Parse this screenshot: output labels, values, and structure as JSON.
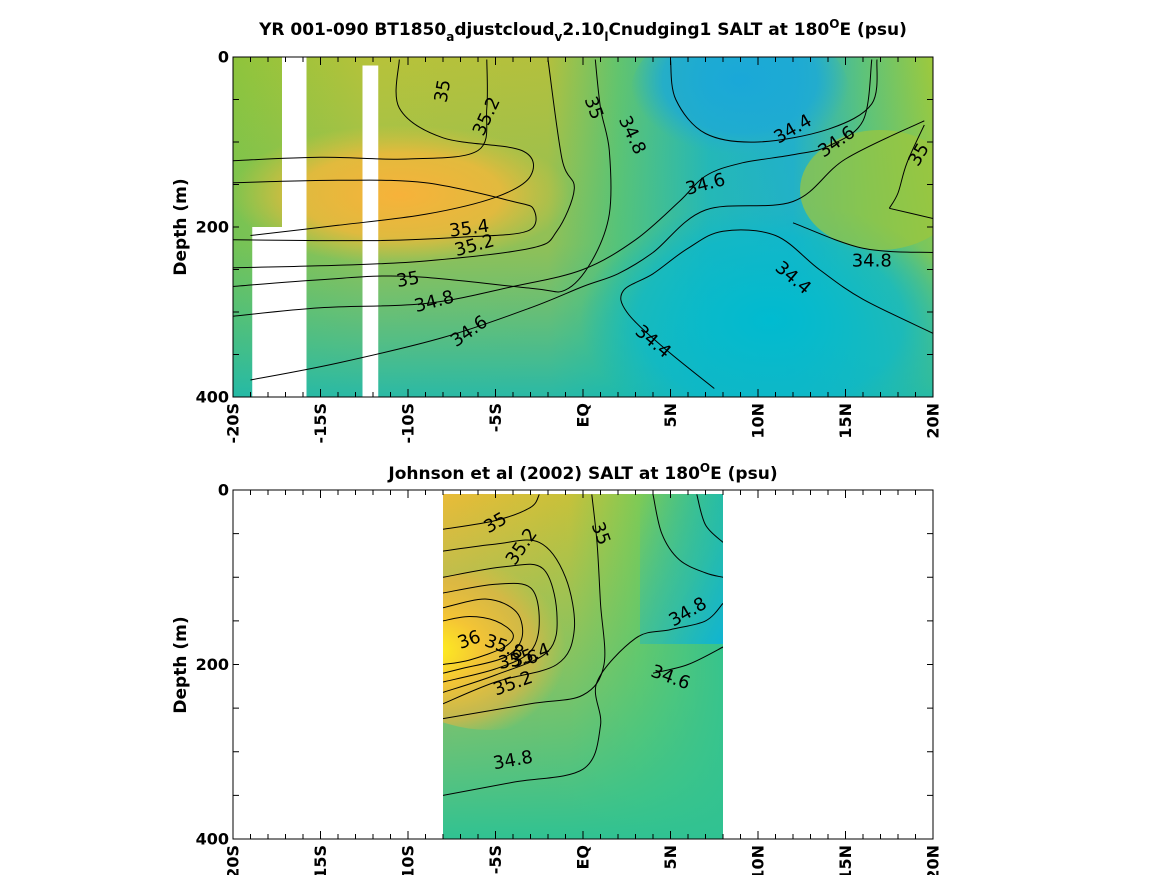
{
  "chart_data": [
    {
      "type": "heatmap",
      "title_parts": {
        "prefix": "YR 001-090 BT1850",
        "sub1": "a",
        "mid1": "djustcloud",
        "sub2": "v",
        "mid2": "2.10",
        "sub3": "l",
        "mid3": "Cnudging1 SALT at 180",
        "sup": "O",
        "suffix": "E (psu)"
      },
      "ylabel": "Depth (m)",
      "xlim": [
        -20,
        20
      ],
      "ylim": [
        0,
        400
      ],
      "y_reversed": true,
      "xticks": [
        {
          "v": -20,
          "label": "-20S"
        },
        {
          "v": -15,
          "label": "-15S"
        },
        {
          "v": -10,
          "label": "-10S"
        },
        {
          "v": -5,
          "label": "-5S"
        },
        {
          "v": 0,
          "label": "EQ"
        },
        {
          "v": 5,
          "label": "5N"
        },
        {
          "v": 10,
          "label": "10N"
        },
        {
          "v": 15,
          "label": "15N"
        },
        {
          "v": 20,
          "label": "20N"
        }
      ],
      "yticks": [
        {
          "v": 0,
          "label": "0"
        },
        {
          "v": 200,
          "label": "200"
        },
        {
          "v": 400,
          "label": "400"
        }
      ],
      "missing_columns": [
        {
          "x": [
            -17.2,
            -15.8
          ],
          "depth": [
            0,
            400
          ]
        },
        {
          "x": [
            -12.6,
            -11.7
          ],
          "depth": [
            10,
            400
          ]
        },
        {
          "x": [
            -18.9,
            -17.2
          ],
          "depth": [
            200,
            400
          ]
        }
      ],
      "contours": [
        {
          "level": "35",
          "points": [
            [
              -19,
              210
            ],
            [
              -14,
              198
            ],
            [
              -9,
              185
            ],
            [
              -5,
              165
            ],
            [
              -3,
              140
            ],
            [
              -3.5,
              110
            ],
            [
              -8,
              95
            ],
            [
              -10.5,
              60
            ],
            [
              -10.5,
              3
            ]
          ]
        },
        {
          "level": "35.2",
          "points": [
            [
              -20,
              122
            ],
            [
              -15,
              118
            ],
            [
              -10,
              120
            ],
            [
              -6,
              110
            ],
            [
              -5.5,
              60
            ],
            [
              -5.5,
              3
            ]
          ]
        },
        {
          "level": "35.4",
          "points": [
            [
              -20,
              148
            ],
            [
              -14,
              145
            ],
            [
              -9,
              148
            ],
            [
              -4,
              170
            ],
            [
              -2.8,
              180
            ],
            [
              -3.2,
              205
            ],
            [
              -7,
              212
            ],
            [
              -12,
              216
            ],
            [
              -20,
              215
            ]
          ]
        },
        {
          "level": "35.2",
          "points": [
            [
              -20,
              248
            ],
            [
              -14,
              245
            ],
            [
              -9,
              240
            ],
            [
              -3,
              225
            ],
            [
              -1.5,
              205
            ],
            [
              -0.5,
              155
            ],
            [
              -1.2,
              120
            ],
            [
              -2,
              3
            ]
          ]
        },
        {
          "level": "35",
          "points": [
            [
              -20,
              270
            ],
            [
              -15,
              262
            ],
            [
              -10,
              258
            ],
            [
              -3,
              272
            ],
            [
              -1,
              274
            ],
            [
              0.5,
              240
            ],
            [
              1.5,
              185
            ],
            [
              1.5,
              110
            ],
            [
              1,
              60
            ],
            [
              0.7,
              3
            ]
          ]
        },
        {
          "level": "34.8",
          "points": [
            [
              -20,
              305
            ],
            [
              -15,
              295
            ],
            [
              -9,
              290
            ],
            [
              -4,
              270
            ],
            [
              0,
              250
            ],
            [
              3,
              215
            ],
            [
              5.5,
              170
            ],
            [
              7,
              140
            ],
            [
              9,
              125
            ],
            [
              12,
              115
            ],
            [
              14,
              105
            ],
            [
              16,
              75
            ],
            [
              16.5,
              3
            ]
          ]
        },
        {
          "level": "34.6",
          "points": [
            [
              -19,
              380
            ],
            [
              -14,
              360
            ],
            [
              -8,
              330
            ],
            [
              -3,
              295
            ],
            [
              0,
              270
            ],
            [
              2,
              255
            ],
            [
              4,
              230
            ],
            [
              7,
              180
            ],
            [
              12,
              170
            ],
            [
              15,
              120
            ],
            [
              19.5,
              75
            ]
          ]
        },
        {
          "level": "35",
          "points": [
            [
              17.5,
              178
            ],
            [
              20,
              190
            ]
          ]
        },
        {
          "level": "35",
          "points": [
            [
              19.5,
              80
            ],
            [
              18.5,
              125
            ],
            [
              18,
              160
            ],
            [
              17.5,
              178
            ]
          ]
        },
        {
          "level": "34.4",
          "points": [
            [
              5,
              3
            ],
            [
              5.3,
              50
            ],
            [
              7,
              90
            ],
            [
              10,
              100
            ],
            [
              14,
              85
            ],
            [
              16.5,
              55
            ],
            [
              16.8,
              3
            ]
          ]
        },
        {
          "level": "34.4",
          "points": [
            [
              7.5,
              390
            ],
            [
              4.5,
              340
            ],
            [
              2.5,
              300
            ],
            [
              2.3,
              275
            ],
            [
              4,
              255
            ],
            [
              6,
              225
            ],
            [
              8,
              205
            ],
            [
              11,
              210
            ],
            [
              13.5,
              250
            ],
            [
              16,
              285
            ],
            [
              20,
              325
            ]
          ]
        },
        {
          "level": "34.8",
          "points": [
            [
              12,
              195
            ],
            [
              16,
              225
            ],
            [
              20,
              230
            ]
          ]
        }
      ],
      "contour_labels": [
        {
          "text": "35",
          "x": -8,
          "y": 40,
          "rot": -80
        },
        {
          "text": "35.2",
          "x": -5.5,
          "y": 70,
          "rot": -65
        },
        {
          "text": "35",
          "x": 0.6,
          "y": 60,
          "rot": 70
        },
        {
          "text": "34.8",
          "x": 2.8,
          "y": 92,
          "rot": 65
        },
        {
          "text": "34.4",
          "x": 12,
          "y": 85,
          "rot": -30
        },
        {
          "text": "34.6",
          "x": 14.5,
          "y": 100,
          "rot": -35
        },
        {
          "text": "35",
          "x": 19.2,
          "y": 115,
          "rot": -60
        },
        {
          "text": "34.6",
          "x": 7,
          "y": 150,
          "rot": -15
        },
        {
          "text": "35.4",
          "x": -6.5,
          "y": 202,
          "rot": -8
        },
        {
          "text": "35.2",
          "x": -6.2,
          "y": 222,
          "rot": -15
        },
        {
          "text": "35",
          "x": -10,
          "y": 262,
          "rot": -10
        },
        {
          "text": "34.8",
          "x": -8.5,
          "y": 288,
          "rot": -15
        },
        {
          "text": "34.6",
          "x": -6.5,
          "y": 323,
          "rot": -35
        },
        {
          "text": "34.4",
          "x": 12,
          "y": 260,
          "rot": 40
        },
        {
          "text": "34.8",
          "x": 16.5,
          "y": 240,
          "rot": 0
        },
        {
          "text": "34.4",
          "x": 4,
          "y": 335,
          "rot": 40
        }
      ]
    },
    {
      "type": "heatmap",
      "title_parts": {
        "prefix": "Johnson et al (2002) SALT at 180",
        "sup": "O",
        "suffix": "E (psu)"
      },
      "ylabel": "Depth (m)",
      "xlim": [
        -20,
        20
      ],
      "ylim": [
        0,
        400
      ],
      "y_reversed": true,
      "data_x_extent": [
        -8,
        8
      ],
      "data_depth_extent": [
        5,
        400
      ],
      "xticks": [
        {
          "v": -20,
          "label": "-20S"
        },
        {
          "v": -15,
          "label": "-15S"
        },
        {
          "v": -10,
          "label": "-10S"
        },
        {
          "v": -5,
          "label": "-5S"
        },
        {
          "v": 0,
          "label": "EQ"
        },
        {
          "v": 5,
          "label": "5N"
        },
        {
          "v": 10,
          "label": "10N"
        },
        {
          "v": 15,
          "label": "15N"
        },
        {
          "v": 20,
          "label": "20N"
        }
      ],
      "yticks": [
        {
          "v": 0,
          "label": "0"
        },
        {
          "v": 200,
          "label": "200"
        },
        {
          "v": 400,
          "label": "400"
        }
      ],
      "contours": [
        {
          "level": "36",
          "points": [
            [
              -8,
              150
            ],
            [
              -6.5,
              145
            ],
            [
              -5,
              150
            ],
            [
              -4,
              165
            ],
            [
              -4.5,
              180
            ],
            [
              -6.5,
              195
            ],
            [
              -8,
              200
            ]
          ]
        },
        {
          "level": "35.8",
          "points": [
            [
              -8,
              135
            ],
            [
              -5.5,
              125
            ],
            [
              -3.8,
              140
            ],
            [
              -3.5,
              170
            ],
            [
              -4.5,
              192
            ],
            [
              -7,
              205
            ],
            [
              -8,
              210
            ]
          ]
        },
        {
          "level": "35.6",
          "points": [
            [
              -8,
              118
            ],
            [
              -5,
              108
            ],
            [
              -3,
              112
            ],
            [
              -2.5,
              150
            ],
            [
              -3,
              185
            ],
            [
              -5,
              205
            ],
            [
              -8,
              220
            ]
          ]
        },
        {
          "level": "35.4",
          "points": [
            [
              -8,
              100
            ],
            [
              -4.5,
              88
            ],
            [
              -2.3,
              90
            ],
            [
              -1.5,
              140
            ],
            [
              -2,
              185
            ],
            [
              -5,
              212
            ],
            [
              -8,
              232
            ]
          ]
        },
        {
          "level": "35.2",
          "points": [
            [
              -8,
              70
            ],
            [
              -5,
              62
            ],
            [
              -2.5,
              60
            ],
            [
              -1,
              100
            ],
            [
              -0.5,
              160
            ],
            [
              -1.5,
              200
            ],
            [
              -5,
              220
            ],
            [
              -8,
              245
            ]
          ]
        },
        {
          "level": "35",
          "points": [
            [
              -8,
              45
            ],
            [
              -5,
              35
            ],
            [
              -3,
              20
            ],
            [
              -2.5,
              5
            ]
          ]
        },
        {
          "level": "35",
          "points": [
            [
              -8,
              262
            ],
            [
              -3,
              245
            ],
            [
              0,
              235
            ],
            [
              1.2,
              200
            ],
            [
              1,
              130
            ],
            [
              0.8,
              60
            ],
            [
              0.5,
              5
            ]
          ]
        },
        {
          "level": "34.8",
          "points": [
            [
              -8,
              350
            ],
            [
              -4,
              335
            ],
            [
              0,
              320
            ],
            [
              1,
              270
            ],
            [
              0.8,
              220
            ],
            [
              3,
              170
            ],
            [
              5,
              160
            ],
            [
              7,
              150
            ],
            [
              8,
              130
            ]
          ]
        },
        {
          "level": "34.8",
          "points": [
            [
              4,
              5
            ],
            [
              4.5,
              50
            ],
            [
              5.5,
              80
            ],
            [
              7,
              95
            ],
            [
              8,
              100
            ]
          ]
        },
        {
          "level": "34.6",
          "points": [
            [
              4,
              210
            ],
            [
              6,
              200
            ],
            [
              8,
              180
            ]
          ]
        },
        {
          "level": "34.6",
          "points": [
            [
              6.5,
              5
            ],
            [
              7,
              40
            ],
            [
              8,
              60
            ]
          ]
        }
      ],
      "contour_labels": [
        {
          "text": "35",
          "x": -5,
          "y": 38,
          "rot": -30
        },
        {
          "text": "35.2",
          "x": -3.5,
          "y": 65,
          "rot": -55
        },
        {
          "text": "35",
          "x": 1,
          "y": 50,
          "rot": 70
        },
        {
          "text": "36",
          "x": -6.5,
          "y": 172,
          "rot": -20
        },
        {
          "text": "35.8",
          "x": -4.5,
          "y": 180,
          "rot": 20
        },
        {
          "text": "35.6",
          "x": -3.7,
          "y": 195,
          "rot": -10
        },
        {
          "text": "35.4",
          "x": -3,
          "y": 190,
          "rot": -20
        },
        {
          "text": "35.2",
          "x": -4,
          "y": 222,
          "rot": -20
        },
        {
          "text": "34.8",
          "x": 6,
          "y": 140,
          "rot": -30
        },
        {
          "text": "34.6",
          "x": 5,
          "y": 215,
          "rot": 20
        },
        {
          "text": "34.8",
          "x": -4,
          "y": 310,
          "rot": -10
        }
      ]
    }
  ]
}
